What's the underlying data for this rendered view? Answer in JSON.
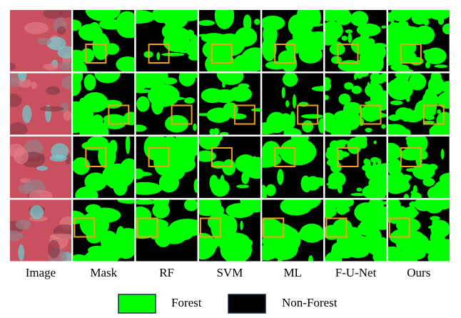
{
  "figure": {
    "columns": [
      "Image",
      "Mask",
      "RF",
      "SVM",
      "ML",
      "F-U-Net",
      "Ours"
    ],
    "legend": [
      {
        "label": "Forest",
        "color": "#00ff00"
      },
      {
        "label": "Non-Forest",
        "color": "#000000"
      }
    ]
  }
}
